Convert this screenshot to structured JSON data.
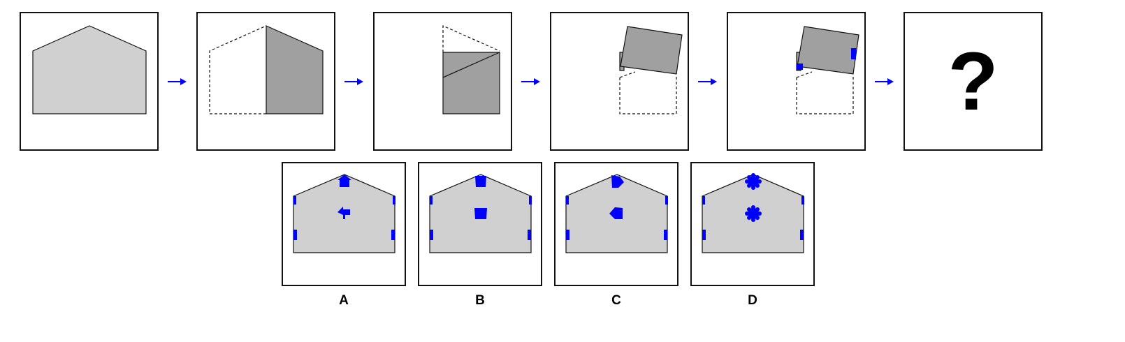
{
  "question_mark": "?",
  "options": [
    {
      "label": "A",
      "center_mark": "arrow-shape-icon"
    },
    {
      "label": "B",
      "center_mark": "square-shape-icon"
    },
    {
      "label": "C",
      "center_mark": "pentagon-shape-icon"
    },
    {
      "label": "D",
      "center_mark": "flower-shape-icon"
    }
  ],
  "colors": {
    "paper": "#d0d0d0",
    "folded": "#a0a0a0",
    "hole": "#0000ff",
    "arrow": "#0000ff",
    "border": "#111111"
  }
}
